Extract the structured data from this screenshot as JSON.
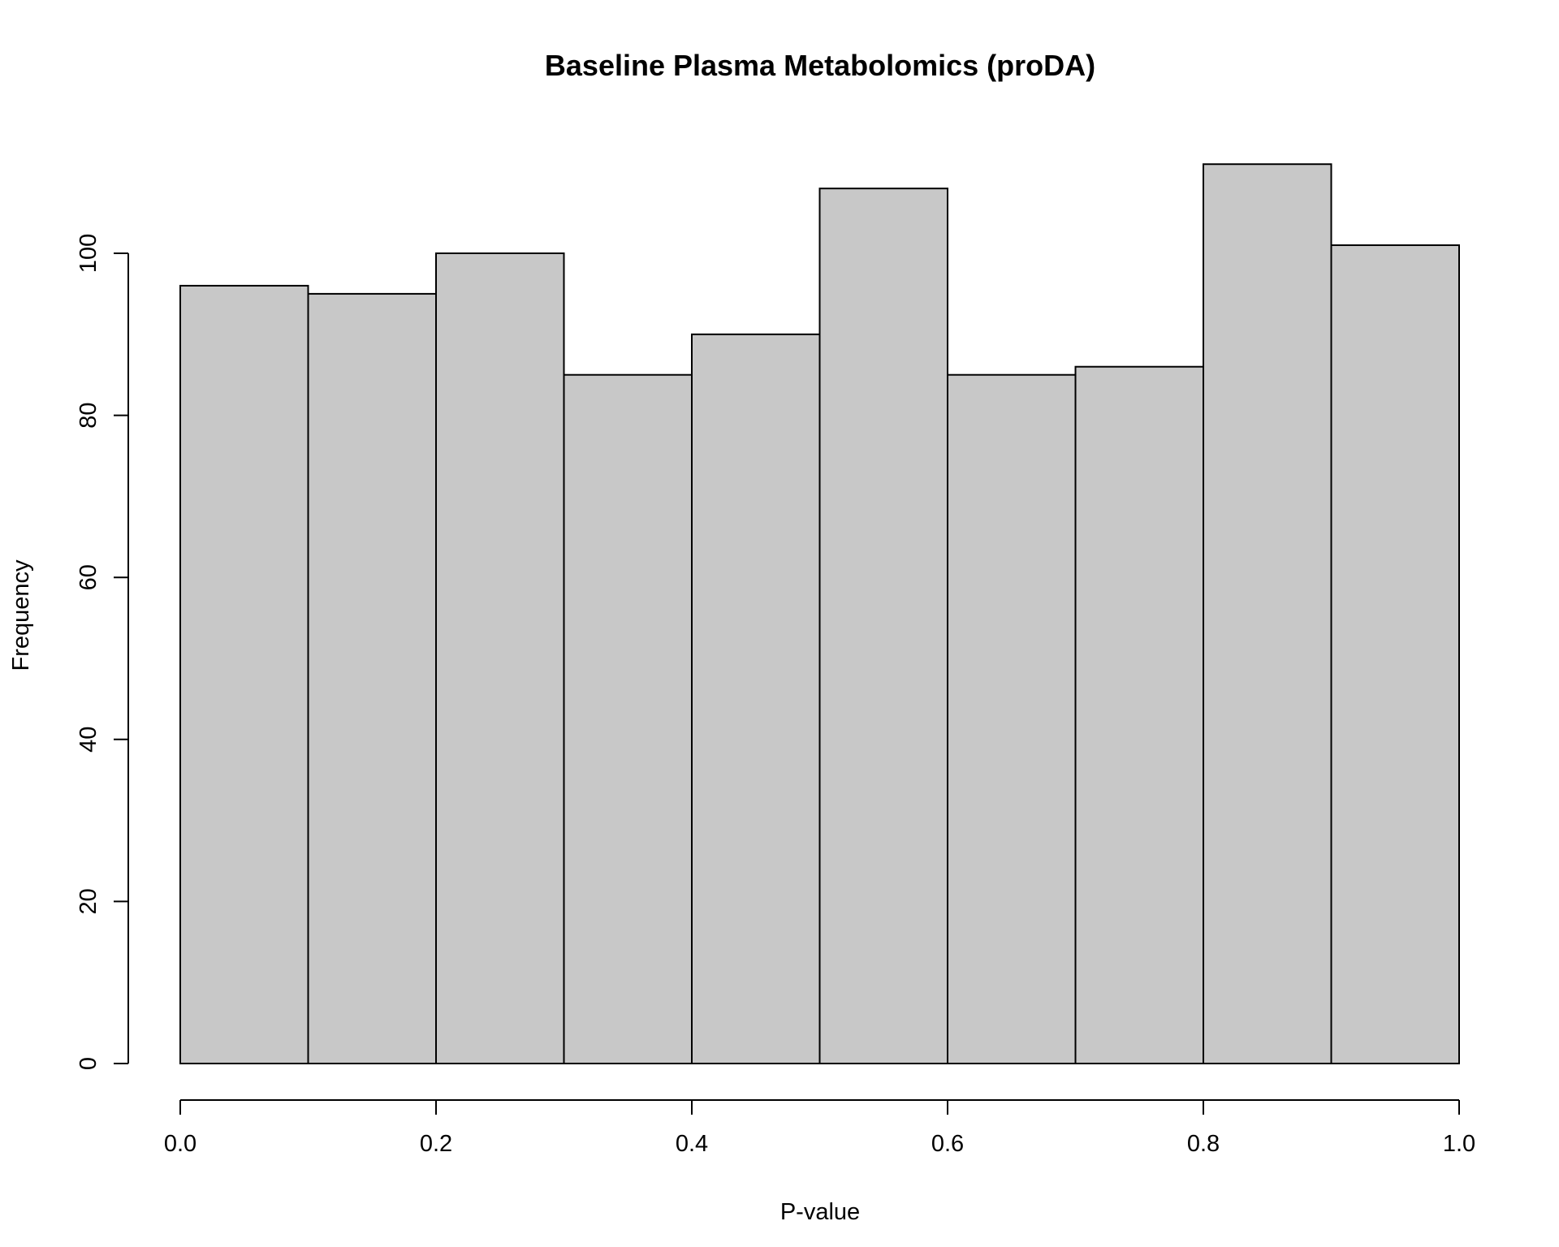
{
  "chart_data": {
    "type": "bar",
    "title": "Baseline Plasma Metabolomics (proDA)",
    "xlabel": "P-value",
    "ylabel": "Frequency",
    "bins": [
      {
        "start": 0.0,
        "end": 0.1,
        "count": 96
      },
      {
        "start": 0.1,
        "end": 0.2,
        "count": 95
      },
      {
        "start": 0.2,
        "end": 0.3,
        "count": 100
      },
      {
        "start": 0.3,
        "end": 0.4,
        "count": 85
      },
      {
        "start": 0.4,
        "end": 0.5,
        "count": 90
      },
      {
        "start": 0.5,
        "end": 0.6,
        "count": 108
      },
      {
        "start": 0.6,
        "end": 0.7,
        "count": 85
      },
      {
        "start": 0.7,
        "end": 0.8,
        "count": 86
      },
      {
        "start": 0.8,
        "end": 0.9,
        "count": 111
      },
      {
        "start": 0.9,
        "end": 1.0,
        "count": 101
      }
    ],
    "xlim": [
      0.0,
      1.0
    ],
    "ylim": [
      0,
      111
    ],
    "x_ticks": [
      "0.0",
      "0.2",
      "0.4",
      "0.6",
      "0.8",
      "1.0"
    ],
    "y_ticks": [
      "0",
      "20",
      "40",
      "60",
      "80",
      "100"
    ],
    "bar_fill": "#c8c8c8",
    "bar_stroke": "#000000",
    "grid": false,
    "legend": "none"
  }
}
